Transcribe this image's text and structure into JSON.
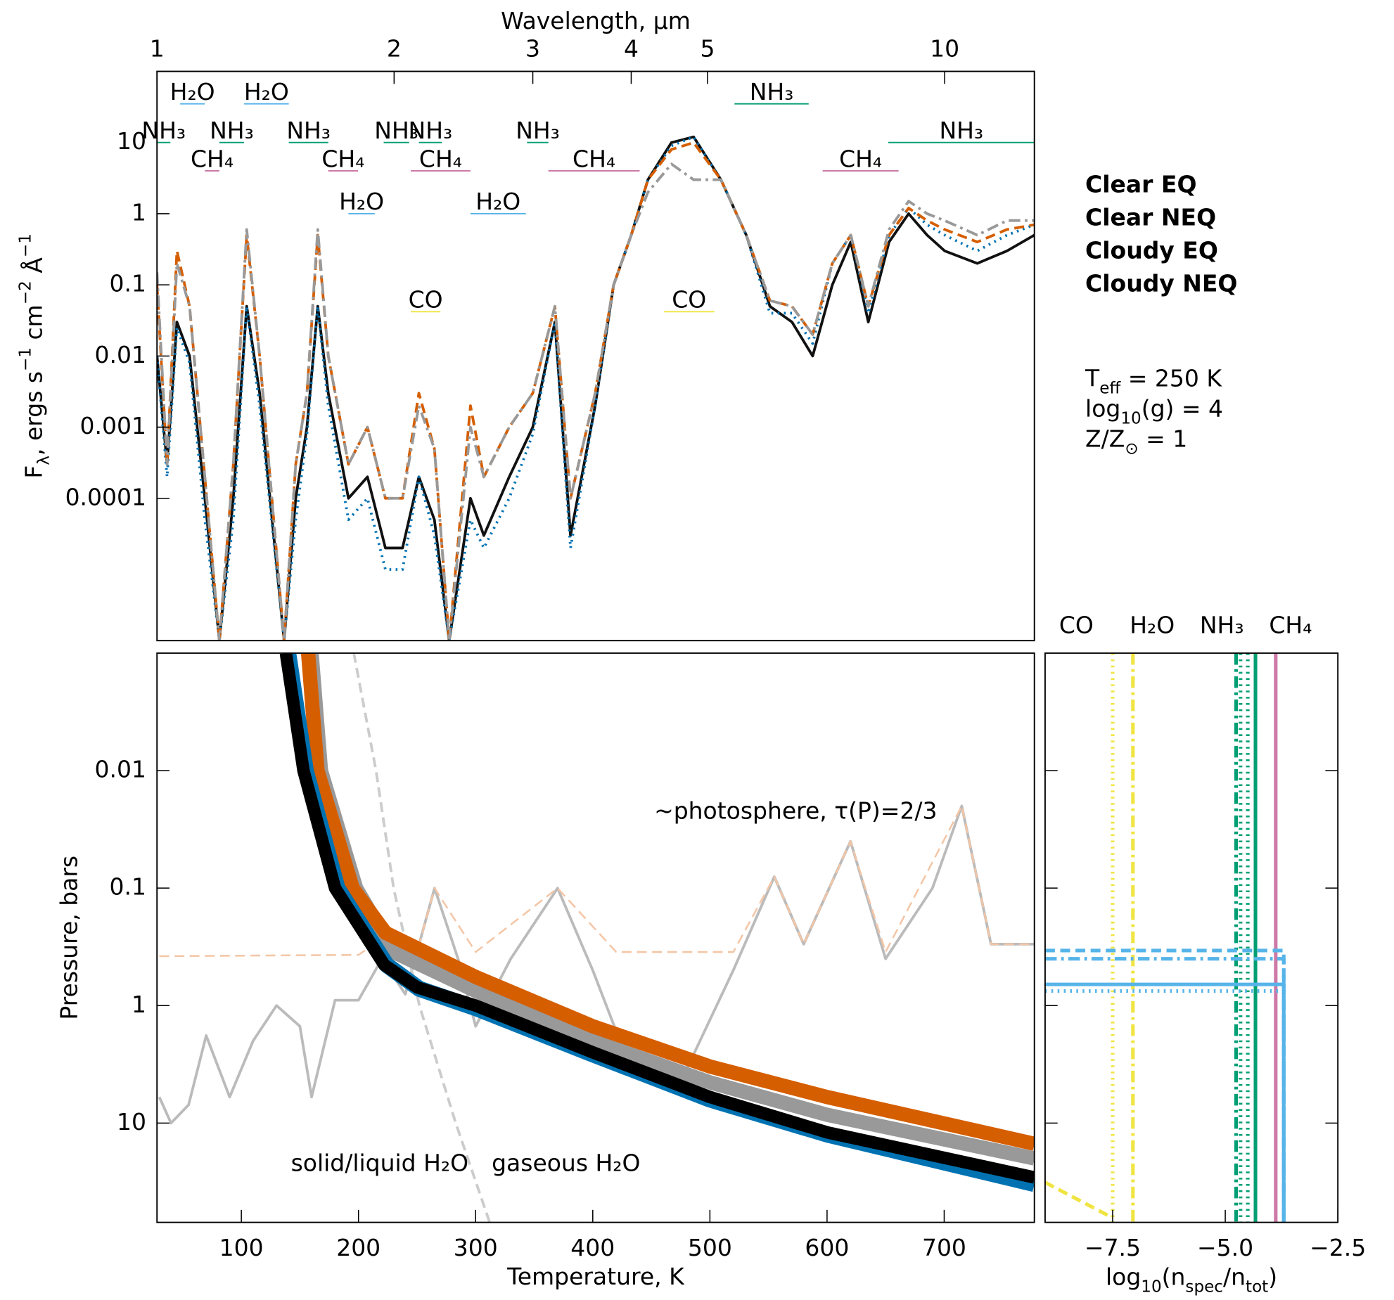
{
  "chart_data": [
    {
      "type": "line",
      "xlabel": "Wavelength, μm",
      "ylabel": [
        {
          "t": "F"
        },
        {
          "sub": "λ"
        },
        {
          "t": ", ergs s"
        },
        {
          "sup": "−1"
        },
        {
          "t": " cm"
        },
        {
          "sup": "−2"
        },
        {
          "t": " Å"
        },
        {
          "sup": "−1"
        }
      ],
      "xscale": "log",
      "yscale": "log",
      "xlim": [
        1,
        13
      ],
      "ylim": [
        1e-06,
        100
      ],
      "xticks": [
        1,
        2,
        3,
        4,
        5,
        10
      ],
      "yticks": [
        10,
        1,
        0.1,
        0.01,
        0.001,
        0.0001
      ],
      "x": [
        1.0,
        1.03,
        1.06,
        1.1,
        1.15,
        1.2,
        1.25,
        1.3,
        1.35,
        1.45,
        1.5,
        1.55,
        1.6,
        1.65,
        1.75,
        1.85,
        1.95,
        2.05,
        2.15,
        2.25,
        2.35,
        2.5,
        2.6,
        2.8,
        3.0,
        3.2,
        3.35,
        3.6,
        3.8,
        4.0,
        4.2,
        4.5,
        4.8,
        5.2,
        5.6,
        6.0,
        6.4,
        6.8,
        7.2,
        7.6,
        8.0,
        8.5,
        9.0,
        9.5,
        10,
        11,
        12,
        13
      ],
      "series": [
        {
          "name": "Clear EQ",
          "color": "#111111",
          "style": "solid",
          "values": [
            0.01,
            0.0003,
            0.03,
            0.01,
            0.0001,
            1e-06,
            0.0001,
            0.05,
            0.003,
            1e-06,
            0.0001,
            0.001,
            0.05,
            0.003,
            0.0001,
            0.0002,
            2e-05,
            2e-05,
            0.0002,
            5e-05,
            1e-06,
            0.0001,
            3e-05,
            0.0002,
            0.001,
            0.03,
            3e-05,
            0.002,
            0.1,
            0.5,
            3,
            10,
            12,
            3,
            0.5,
            0.05,
            0.03,
            0.01,
            0.1,
            0.4,
            0.03,
            0.4,
            1,
            0.5,
            0.3,
            0.2,
            0.3,
            0.5
          ]
        },
        {
          "name": "Clear NEQ",
          "color": "#0072b2",
          "style": "dotted",
          "values": [
            0.01,
            0.0002,
            0.025,
            0.008,
            5e-05,
            1e-06,
            5e-05,
            0.05,
            0.002,
            1e-06,
            5e-05,
            0.0008,
            0.05,
            0.002,
            5e-05,
            0.0001,
            1e-05,
            1e-05,
            0.0002,
            3e-05,
            1e-06,
            5e-05,
            2e-05,
            0.0001,
            0.0008,
            0.03,
            2e-05,
            0.002,
            0.1,
            0.5,
            3,
            9,
            12,
            3,
            0.5,
            0.04,
            0.04,
            0.015,
            0.2,
            0.5,
            0.04,
            0.5,
            1.2,
            0.7,
            0.5,
            0.3,
            0.5,
            0.7
          ]
        },
        {
          "name": "Cloudy EQ",
          "color": "#d55e00",
          "style": "dashed",
          "values": [
            0.1,
            0.0003,
            0.3,
            0.05,
            0.0002,
            1e-06,
            0.0003,
            0.5,
            0.01,
            1e-06,
            0.0003,
            0.003,
            0.5,
            0.01,
            0.0003,
            0.001,
            0.0001,
            0.0001,
            0.003,
            0.0005,
            1e-06,
            0.002,
            0.0002,
            0.001,
            0.003,
            0.05,
            0.0001,
            0.003,
            0.1,
            0.5,
            3,
            8,
            10,
            3,
            0.5,
            0.06,
            0.05,
            0.02,
            0.2,
            0.5,
            0.05,
            0.5,
            1.2,
            0.8,
            0.6,
            0.4,
            0.6,
            0.7
          ]
        },
        {
          "name": "Cloudy NEQ",
          "color": "#999999",
          "style": "dashdot",
          "values": [
            0.15,
            0.0003,
            0.2,
            0.05,
            0.0002,
            1e-06,
            0.0003,
            0.6,
            0.01,
            1e-06,
            0.0003,
            0.003,
            0.6,
            0.01,
            0.0003,
            0.001,
            0.0001,
            0.0001,
            0.002,
            0.0005,
            1e-06,
            0.001,
            0.0002,
            0.001,
            0.003,
            0.05,
            0.0001,
            0.003,
            0.1,
            0.5,
            2,
            5,
            3,
            3,
            0.5,
            0.06,
            0.05,
            0.02,
            0.2,
            0.5,
            0.05,
            0.6,
            1.5,
            1,
            0.8,
            0.5,
            0.8,
            0.8
          ]
        }
      ],
      "bands": [
        {
          "label": "H₂O",
          "x": [
            1.07,
            1.15
          ],
          "y": 35,
          "color": "#56b4e9"
        },
        {
          "label": "H₂O",
          "x": [
            1.29,
            1.47
          ],
          "y": 35,
          "color": "#56b4e9"
        },
        {
          "label": "NH₃",
          "x": [
            1.0,
            1.04
          ],
          "y": 10,
          "color": "#009e73"
        },
        {
          "label": "NH₃",
          "x": [
            1.2,
            1.29
          ],
          "y": 10,
          "color": "#009e73"
        },
        {
          "label": "NH₃",
          "x": [
            1.47,
            1.65
          ],
          "y": 10,
          "color": "#009e73"
        },
        {
          "label": "NH₃",
          "x": [
            1.94,
            2.09
          ],
          "y": 10,
          "color": "#009e73"
        },
        {
          "label": "NH₃",
          "x": [
            2.15,
            2.3
          ],
          "y": 10,
          "color": "#009e73"
        },
        {
          "label": "NH₃",
          "x": [
            2.95,
            3.14
          ],
          "y": 10,
          "color": "#009e73"
        },
        {
          "label": "NH₃",
          "x": [
            5.41,
            6.72
          ],
          "y": 35,
          "color": "#009e73"
        },
        {
          "label": "NH₃",
          "x": [
            8.48,
            13
          ],
          "y": 10,
          "color": "#009e73"
        },
        {
          "label": "CH₄",
          "x": [
            1.15,
            1.2
          ],
          "y": 4,
          "color": "#cc79a7"
        },
        {
          "label": "CH₄",
          "x": [
            1.65,
            1.8
          ],
          "y": 4,
          "color": "#cc79a7"
        },
        {
          "label": "CH₄",
          "x": [
            2.1,
            2.5
          ],
          "y": 4,
          "color": "#cc79a7"
        },
        {
          "label": "CH₄",
          "x": [
            3.14,
            4.1
          ],
          "y": 4,
          "color": "#cc79a7"
        },
        {
          "label": "CH₄",
          "x": [
            7.0,
            8.74
          ],
          "y": 4,
          "color": "#cc79a7"
        },
        {
          "label": "H₂O",
          "x": [
            1.75,
            1.89
          ],
          "y": 1,
          "color": "#56b4e9"
        },
        {
          "label": "H₂O",
          "x": [
            2.5,
            2.94
          ],
          "y": 1,
          "color": "#56b4e9"
        },
        {
          "label": "CO",
          "x": [
            2.1,
            2.29
          ],
          "y": 0.042,
          "color": "#f0e442"
        },
        {
          "label": "CO",
          "x": [
            4.4,
            5.1
          ],
          "y": 0.042,
          "color": "#f0e442"
        }
      ],
      "params": [
        [
          {
            "t": "T"
          },
          {
            "sub": "eff"
          },
          {
            "t": " = 250 K"
          }
        ],
        [
          {
            "t": "log"
          },
          {
            "sub": "10"
          },
          {
            "t": "(g) = 4"
          }
        ],
        [
          {
            "t": "Z/Z"
          },
          {
            "sub": "⊙"
          },
          {
            "t": " = 1"
          }
        ]
      ]
    },
    {
      "type": "line",
      "xlabel": "Temperature, K",
      "ylabel": "Pressure, bars",
      "xscale": "linear",
      "yscale": "log",
      "yinvert": true,
      "xlim": [
        28,
        777
      ],
      "ylim": [
        0.001,
        70
      ],
      "xticks": [
        100,
        200,
        300,
        400,
        500,
        600,
        700
      ],
      "yticks": [
        0.01,
        0.1,
        1,
        10
      ],
      "annotations": [
        "~photosphere, τ(P)=2/3",
        "solid/liquid H₂O",
        "gaseous H₂O"
      ],
      "series": [
        {
          "color": "#bbbbbb",
          "style": "solid",
          "width": 3,
          "x": [
            30,
            40,
            55,
            70,
            90,
            110,
            130,
            150,
            160,
            180,
            200,
            220,
            240,
            265,
            285,
            300,
            330,
            370,
            400,
            430,
            460,
            480,
            520,
            555,
            580,
            620,
            650,
            690,
            715,
            740,
            777
          ],
          "values": [
            6,
            10,
            7,
            1.8,
            6,
            2,
            1,
            1.5,
            6,
            0.9,
            0.9,
            0.4,
            0.8,
            0.1,
            0.4,
            1.5,
            0.4,
            0.1,
            0.5,
            3,
            5,
            3.5,
            0.5,
            0.08,
            0.3,
            0.04,
            0.4,
            0.1,
            0.02,
            0.3,
            0.3
          ]
        },
        {
          "color": "#f4c6a6",
          "style": "dashed",
          "width": 2,
          "x": [
            30,
            200,
            225,
            250,
            265,
            300,
            370,
            420,
            520,
            555,
            580,
            620,
            650,
            715,
            740,
            777
          ],
          "values": [
            0.38,
            0.37,
            0.25,
            0.35,
            0.1,
            0.35,
            0.1,
            0.35,
            0.35,
            0.08,
            0.3,
            0.04,
            0.35,
            0.02,
            0.3,
            0.3
          ]
        },
        {
          "color": "#cccccc",
          "style": "dashed",
          "width": 3,
          "x": [
            196,
            215,
            230,
            252,
            283,
            312
          ],
          "values": [
            0.001,
            0.01,
            0.1,
            1,
            10,
            70
          ]
        },
        {
          "color": "#999999",
          "style": "solid",
          "width": 16,
          "x": [
            160,
            168,
            198,
            230,
            300,
            400,
            500,
            600,
            777
          ],
          "values": [
            0.001,
            0.01,
            0.1,
            0.35,
            0.75,
            2.0,
            4.5,
            8.5,
            20
          ]
        },
        {
          "color": "#d55e00",
          "style": "solid",
          "width": 16,
          "x": [
            157,
            165,
            195,
            223,
            300,
            400,
            500,
            600,
            777
          ],
          "values": [
            0.001,
            0.01,
            0.1,
            0.24,
            0.57,
            1.5,
            3.3,
            6.0,
            15
          ]
        },
        {
          "color": "#0072b2",
          "style": "solid",
          "width": 18,
          "x": [
            140,
            155,
            182,
            224,
            252,
            300,
            400,
            500,
            600,
            777
          ],
          "values": [
            0.001,
            0.01,
            0.1,
            0.45,
            0.72,
            1.05,
            2.6,
            6.3,
            12.5,
            33
          ]
        },
        {
          "color": "#000000",
          "style": "solid",
          "width": 14,
          "x": [
            138,
            153,
            180,
            222,
            250,
            300,
            400,
            500,
            600,
            777
          ],
          "values": [
            0.001,
            0.01,
            0.1,
            0.45,
            0.7,
            1.0,
            2.5,
            6,
            12,
            29
          ]
        }
      ]
    },
    {
      "type": "line",
      "xlabel": [
        {
          "t": "log"
        },
        {
          "sub": "10"
        },
        {
          "t": "(n"
        },
        {
          "sub": "spec"
        },
        {
          "t": "/n"
        },
        {
          "sub": "tot"
        },
        {
          "t": ")"
        }
      ],
      "xscale": "linear",
      "yscale": "log",
      "yinvert": true,
      "xlim": [
        -9,
        -2.5
      ],
      "ylim": [
        0.001,
        70
      ],
      "xticks": [
        {
          "value": -7.5,
          "label": "−7.5"
        },
        {
          "value": -5.0,
          "label": "−5.0"
        },
        {
          "value": -2.5,
          "label": "−2.5"
        }
      ],
      "yticks": [
        0.01,
        0.1,
        1,
        10
      ],
      "legend": [
        {
          "name": "CO",
          "color": "#f0e442"
        },
        {
          "name": "H₂O",
          "color": "#56b4e9"
        },
        {
          "name": "NH₃",
          "color": "#009e73"
        },
        {
          "name": "CH₄",
          "color": "#cc79a7"
        }
      ],
      "series": [
        {
          "color": "#f0e442",
          "style": "dotted",
          "width": 4,
          "x": [
            -7.5,
            -7.5
          ],
          "values": [
            0.001,
            70
          ]
        },
        {
          "color": "#f0e442",
          "style": "dashdot",
          "width": 4,
          "x": [
            -7.05,
            -7.05
          ],
          "values": [
            0.001,
            70
          ]
        },
        {
          "color": "#f0e442",
          "style": "dashed",
          "width": 4,
          "x": [
            -9,
            -7.5
          ],
          "values": [
            32,
            64
          ]
        },
        {
          "color": "#009e73",
          "style": "dashdot",
          "width": 4,
          "x": [
            -4.76,
            -4.76
          ],
          "values": [
            0.001,
            70
          ]
        },
        {
          "color": "#009e73",
          "style": "dotted",
          "width": 4,
          "x": [
            -4.66,
            -4.66
          ],
          "values": [
            0.001,
            70
          ]
        },
        {
          "color": "#009e73",
          "style": "dotted",
          "width": 4,
          "x": [
            -4.5,
            -4.5
          ],
          "values": [
            0.001,
            70
          ]
        },
        {
          "color": "#009e73",
          "style": "solid",
          "width": 4,
          "x": [
            -4.33,
            -4.33
          ],
          "values": [
            0.001,
            70
          ]
        },
        {
          "color": "#cc79a7",
          "style": "solid",
          "width": 4,
          "x": [
            -3.88,
            -3.88
          ],
          "values": [
            0.001,
            70
          ]
        },
        {
          "color": "#56b4e9",
          "style": "dashed",
          "width": 4,
          "x": [
            -9,
            -3.7,
            -3.7
          ],
          "values": [
            0.34,
            0.34,
            70
          ]
        },
        {
          "color": "#56b4e9",
          "style": "dashdot",
          "width": 4,
          "x": [
            -9,
            -3.7,
            -3.7
          ],
          "values": [
            0.4,
            0.4,
            70
          ]
        },
        {
          "color": "#56b4e9",
          "style": "solid",
          "width": 4,
          "x": [
            -9,
            -3.7,
            -3.7
          ],
          "values": [
            0.66,
            0.66,
            70
          ]
        },
        {
          "color": "#56b4e9",
          "style": "dotted",
          "width": 4,
          "x": [
            -9,
            -3.7,
            -3.7
          ],
          "values": [
            0.75,
            0.75,
            70
          ]
        }
      ]
    }
  ]
}
